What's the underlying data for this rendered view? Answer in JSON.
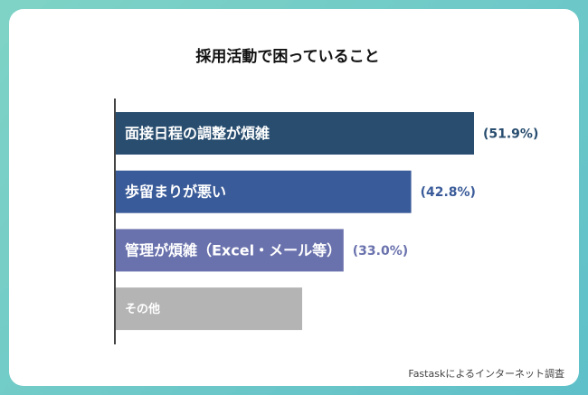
{
  "chart_data": {
    "type": "bar",
    "orientation": "horizontal",
    "title": "採用活動で困っていること",
    "categories": [
      "面接日程の調整が煩雑",
      "歩留まりが悪い",
      "管理が煩雑（Excel・メール等）",
      "その他"
    ],
    "values": [
      51.9,
      42.8,
      33.0,
      27
    ],
    "value_labels": [
      "(51.9%)",
      "(42.8%)",
      "(33.0%)",
      null
    ],
    "colors": [
      "#284d6f",
      "#3a5b99",
      "#6a72ad",
      "#b4b4b4"
    ],
    "source": "Fastaskによるインターネット調査"
  }
}
